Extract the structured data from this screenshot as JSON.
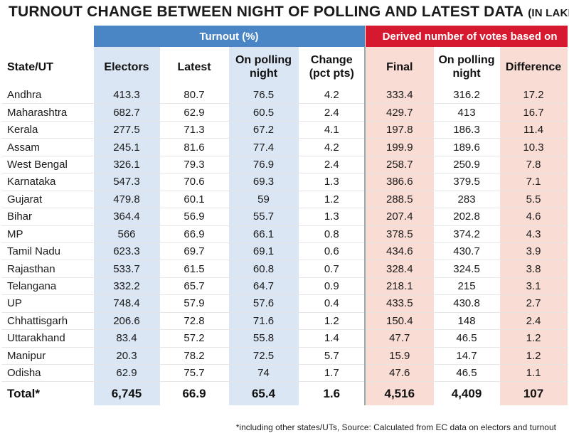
{
  "title": {
    "main": "TURNOUT CHANGE BETWEEN NIGHT OF POLLING AND LATEST DATA",
    "unit": "(IN LAKH)"
  },
  "groups": {
    "turnout": "Turnout (%)",
    "votes": "Derived number of votes based on"
  },
  "columns": [
    "State/UT",
    "Electors",
    "Latest",
    "On polling night",
    "Change (pct pts)",
    "Final",
    "On polling night",
    "Difference"
  ],
  "colors": {
    "turnout_header": "#4a86c5",
    "votes_header": "#d6192e",
    "blue_column": "#dbe6f4",
    "pink_column": "#f9dcd3"
  },
  "chart_data": {
    "type": "table",
    "title": "TURNOUT CHANGE BETWEEN NIGHT OF POLLING AND LATEST DATA (IN LAKH)",
    "columns": [
      "State/UT",
      "Electors",
      "Latest",
      "On polling night",
      "Change (pct pts)",
      "Final",
      "On polling night",
      "Difference"
    ],
    "rows": [
      [
        "Andhra",
        "413.3",
        "80.7",
        "76.5",
        "4.2",
        "333.4",
        "316.2",
        "17.2"
      ],
      [
        "Maharashtra",
        "682.7",
        "62.9",
        "60.5",
        "2.4",
        "429.7",
        "413",
        "16.7"
      ],
      [
        "Kerala",
        "277.5",
        "71.3",
        "67.2",
        "4.1",
        "197.8",
        "186.3",
        "11.4"
      ],
      [
        "Assam",
        "245.1",
        "81.6",
        "77.4",
        "4.2",
        "199.9",
        "189.6",
        "10.3"
      ],
      [
        "West Bengal",
        "326.1",
        "79.3",
        "76.9",
        "2.4",
        "258.7",
        "250.9",
        "7.8"
      ],
      [
        "Karnataka",
        "547.3",
        "70.6",
        "69.3",
        "1.3",
        "386.6",
        "379.5",
        "7.1"
      ],
      [
        "Gujarat",
        "479.8",
        "60.1",
        "59",
        "1.2",
        "288.5",
        "283",
        "5.5"
      ],
      [
        "Bihar",
        "364.4",
        "56.9",
        "55.7",
        "1.3",
        "207.4",
        "202.8",
        "4.6"
      ],
      [
        "MP",
        "566",
        "66.9",
        "66.1",
        "0.8",
        "378.5",
        "374.2",
        "4.3"
      ],
      [
        "Tamil Nadu",
        "623.3",
        "69.7",
        "69.1",
        "0.6",
        "434.6",
        "430.7",
        "3.9"
      ],
      [
        "Rajasthan",
        "533.7",
        "61.5",
        "60.8",
        "0.7",
        "328.4",
        "324.5",
        "3.8"
      ],
      [
        "Telangana",
        "332.2",
        "65.7",
        "64.7",
        "0.9",
        "218.1",
        "215",
        "3.1"
      ],
      [
        "UP",
        "748.4",
        "57.9",
        "57.6",
        "0.4",
        "433.5",
        "430.8",
        "2.7"
      ],
      [
        "Chhattisgarh",
        "206.6",
        "72.8",
        "71.6",
        "1.2",
        "150.4",
        "148",
        "2.4"
      ],
      [
        "Uttarakhand",
        "83.4",
        "57.2",
        "55.8",
        "1.4",
        "47.7",
        "46.5",
        "1.2"
      ],
      [
        "Manipur",
        "20.3",
        "78.2",
        "72.5",
        "5.7",
        "15.9",
        "14.7",
        "1.2"
      ],
      [
        "Odisha",
        "62.9",
        "75.7",
        "74",
        "1.7",
        "47.6",
        "46.5",
        "1.1"
      ]
    ],
    "total": [
      "Total*",
      "6,745",
      "66.9",
      "65.4",
      "1.6",
      "4,516",
      "4,409",
      "107"
    ]
  },
  "footnote": "*including other states/UTs, Source: Calculated from EC data on electors and turnout"
}
